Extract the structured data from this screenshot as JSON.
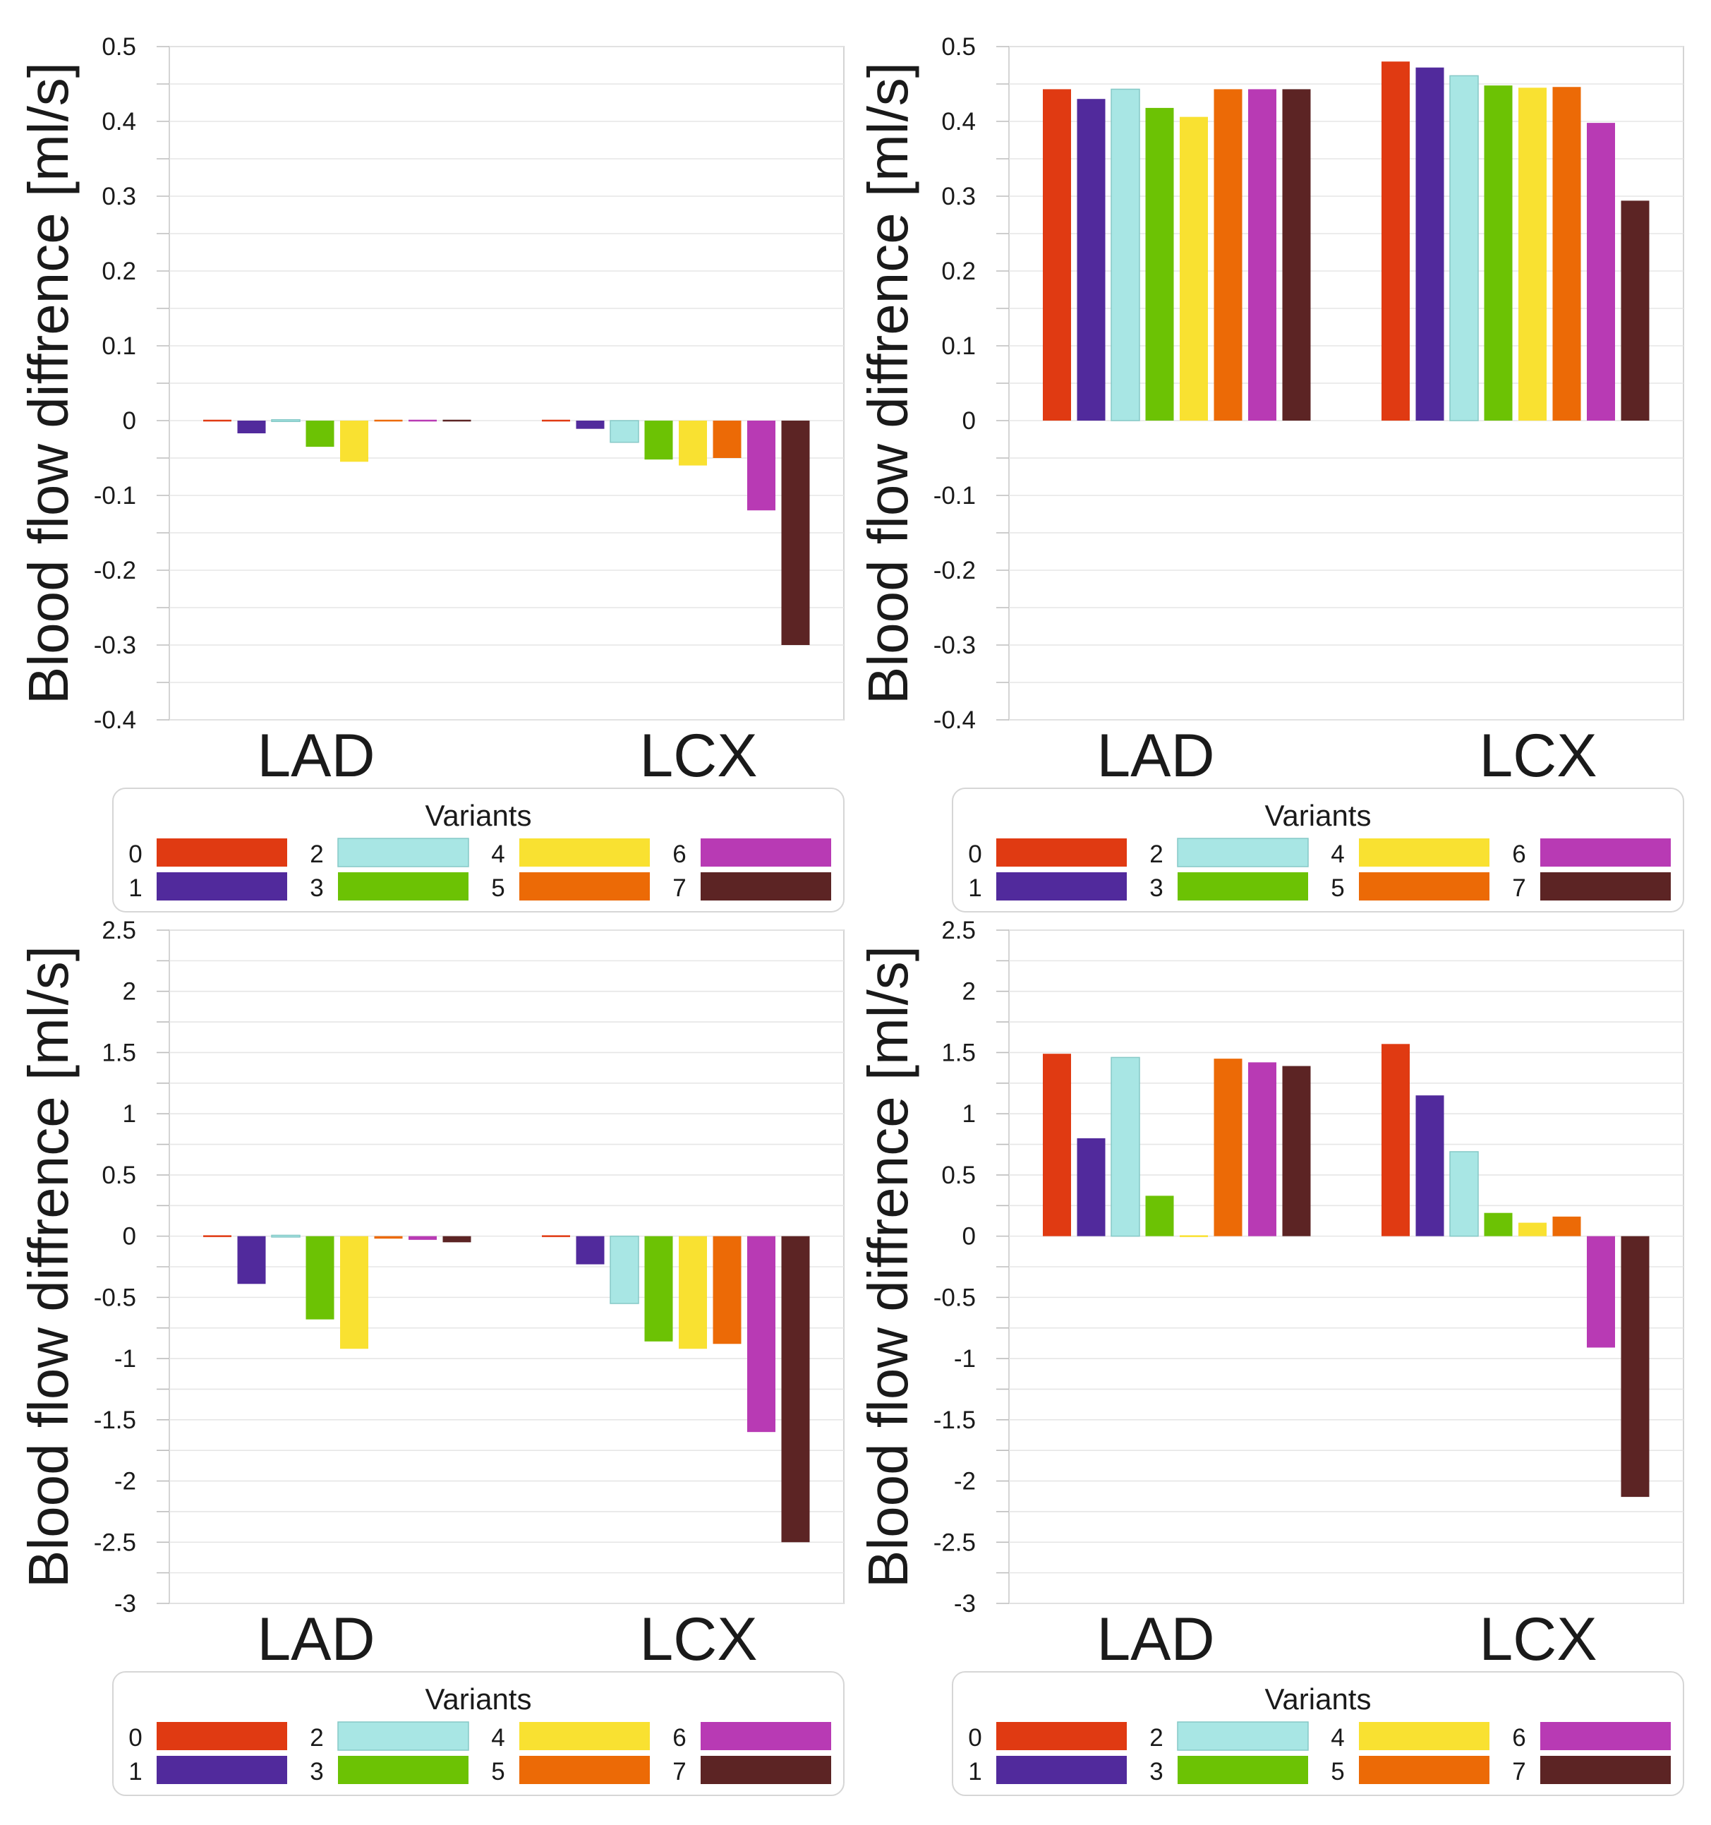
{
  "legend": {
    "title": "Variants",
    "variants": [
      "0",
      "1",
      "2",
      "3",
      "4",
      "5",
      "6",
      "7"
    ],
    "colors": [
      "#e03a12",
      "#512a9c",
      "#a8e6e4",
      "#6cc204",
      "#f9e131",
      "#ec6a06",
      "#b83ab4",
      "#5c2424"
    ]
  },
  "chart_data": [
    {
      "type": "bar",
      "ylabel": "Blood flow diffrence [ml/s]",
      "categories": [
        "LAD",
        "LCX"
      ],
      "ylim": [
        -0.4,
        0.5
      ],
      "yticks": [
        0.5,
        0.4,
        0.3,
        0.2,
        0.1,
        0,
        -0.1,
        -0.2,
        -0.3,
        -0.4
      ],
      "ytick_labels": [
        "0.5",
        "0.4",
        "0.3",
        "0.2",
        "0.1",
        "0",
        "-0.1",
        "-0.2",
        "-0.3",
        "-0.4"
      ],
      "series": [
        {
          "name": "0",
          "values": [
            0,
            0
          ]
        },
        {
          "name": "1",
          "values": [
            -0.017,
            -0.011
          ]
        },
        {
          "name": "2",
          "values": [
            -0.001,
            -0.029
          ]
        },
        {
          "name": "3",
          "values": [
            -0.035,
            -0.052
          ]
        },
        {
          "name": "4",
          "values": [
            -0.055,
            -0.06
          ]
        },
        {
          "name": "5",
          "values": [
            -0.001,
            -0.05
          ]
        },
        {
          "name": "6",
          "values": [
            -0.001,
            -0.12
          ]
        },
        {
          "name": "7",
          "values": [
            -0.001,
            -0.3
          ]
        }
      ]
    },
    {
      "type": "bar",
      "ylabel": "Blood flow diffrence [ml/s]",
      "categories": [
        "LAD",
        "LCX"
      ],
      "ylim": [
        -0.4,
        0.5
      ],
      "yticks": [
        0.5,
        0.4,
        0.3,
        0.2,
        0.1,
        0,
        -0.1,
        -0.2,
        -0.3,
        -0.4
      ],
      "ytick_labels": [
        "0.5",
        "0.4",
        "0.3",
        "0.2",
        "0.1",
        "0",
        "-0.1",
        "-0.2",
        "-0.3",
        "-0.4"
      ],
      "series": [
        {
          "name": "0",
          "values": [
            0.443,
            0.48
          ]
        },
        {
          "name": "1",
          "values": [
            0.43,
            0.472
          ]
        },
        {
          "name": "2",
          "values": [
            0.443,
            0.461
          ]
        },
        {
          "name": "3",
          "values": [
            0.418,
            0.448
          ]
        },
        {
          "name": "4",
          "values": [
            0.406,
            0.445
          ]
        },
        {
          "name": "5",
          "values": [
            0.443,
            0.446
          ]
        },
        {
          "name": "6",
          "values": [
            0.443,
            0.398
          ]
        },
        {
          "name": "7",
          "values": [
            0.443,
            0.294
          ]
        }
      ]
    },
    {
      "type": "bar",
      "ylabel": "Blood flow diffrence [ml/s]",
      "categories": [
        "LAD",
        "LCX"
      ],
      "ylim": [
        -3,
        2.5
      ],
      "yticks": [
        2.5,
        2,
        1.5,
        1,
        0.5,
        0,
        -0.5,
        -1,
        -1.5,
        -2,
        -2.5,
        -3
      ],
      "ytick_labels": [
        "2.5",
        "2",
        "1.5",
        "1",
        "0.5",
        "0",
        "-0.5",
        "-1",
        "-1.5",
        "-2",
        "-2.5",
        "-3"
      ],
      "series": [
        {
          "name": "0",
          "values": [
            0,
            0
          ]
        },
        {
          "name": "1",
          "values": [
            -0.39,
            -0.23
          ]
        },
        {
          "name": "2",
          "values": [
            -0.01,
            -0.55
          ]
        },
        {
          "name": "3",
          "values": [
            -0.68,
            -0.86
          ]
        },
        {
          "name": "4",
          "values": [
            -0.92,
            -0.92
          ]
        },
        {
          "name": "5",
          "values": [
            -0.02,
            -0.88
          ]
        },
        {
          "name": "6",
          "values": [
            -0.03,
            -1.6
          ]
        },
        {
          "name": "7",
          "values": [
            -0.05,
            -2.5
          ]
        }
      ]
    },
    {
      "type": "bar",
      "ylabel": "Blood flow diffrence [ml/s]",
      "categories": [
        "LAD",
        "LCX"
      ],
      "ylim": [
        -3,
        2.5
      ],
      "yticks": [
        2.5,
        2,
        1.5,
        1,
        0.5,
        0,
        -0.5,
        -1,
        -1.5,
        -2,
        -2.5,
        -3
      ],
      "ytick_labels": [
        "2.5",
        "2",
        "1.5",
        "1",
        "0.5",
        "0",
        "-0.5",
        "-1",
        "-1.5",
        "-2",
        "-2.5",
        "-3"
      ],
      "series": [
        {
          "name": "0",
          "values": [
            1.49,
            1.57
          ]
        },
        {
          "name": "1",
          "values": [
            0.8,
            1.15
          ]
        },
        {
          "name": "2",
          "values": [
            1.46,
            0.69
          ]
        },
        {
          "name": "3",
          "values": [
            0.33,
            0.19
          ]
        },
        {
          "name": "4",
          "values": [
            -0.01,
            0.11
          ]
        },
        {
          "name": "5",
          "values": [
            1.45,
            0.16
          ]
        },
        {
          "name": "6",
          "values": [
            1.42,
            -0.91
          ]
        },
        {
          "name": "7",
          "values": [
            1.39,
            -2.13
          ]
        }
      ]
    }
  ]
}
